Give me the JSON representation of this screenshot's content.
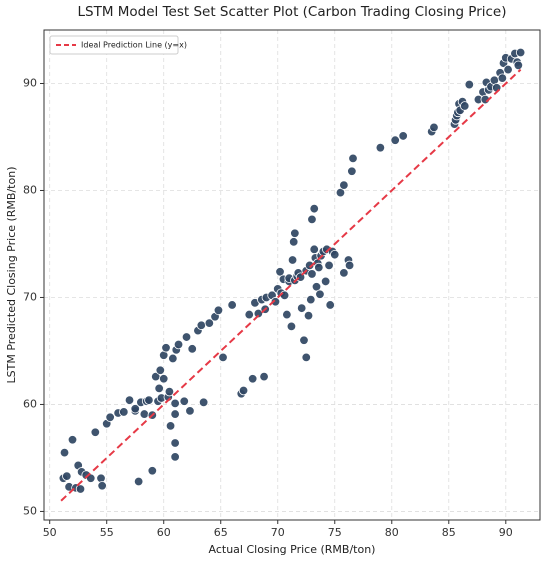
{
  "chart_data": {
    "type": "scatter",
    "title": "LSTM Model Test Set Scatter Plot (Carbon Trading Closing Price)",
    "x_label": "Actual Closing Price (RMB/ton)",
    "y_label": "LSTM Predicted Closing Price (RMB/ton)",
    "xlim": [
      49.5,
      93
    ],
    "ylim": [
      49.2,
      95
    ],
    "xticks": [
      50,
      55,
      60,
      65,
      70,
      75,
      80,
      85,
      90
    ],
    "yticks": [
      50,
      60,
      70,
      80,
      90
    ],
    "grid": true,
    "legend": "upper left",
    "color": "#2f4562",
    "x": [
      51.2,
      51.3,
      51.5,
      51.7,
      52,
      52.3,
      52.5,
      52.7,
      52.8,
      53.2,
      53.6,
      54,
      54.5,
      54.6,
      55,
      55.3,
      56,
      56.5,
      57,
      57.5,
      57.8,
      57.5,
      58,
      58.3,
      58.5,
      58.7,
      59,
      59,
      59.3,
      59.5,
      59.6,
      59.7,
      59.8,
      60,
      60,
      60.2,
      60.4,
      60.5,
      60.6,
      60.8,
      61,
      61,
      61,
      61,
      61.1,
      61.3,
      61.8,
      62,
      62.3,
      62.5,
      63,
      63.3,
      63.5,
      64,
      64.5,
      64.8,
      65.2,
      66,
      66.8,
      67,
      67.5,
      67.8,
      68,
      68.3,
      68.6,
      68.8,
      68.9,
      69,
      69.5,
      69.8,
      70,
      70.2,
      70.3,
      70.5,
      70.6,
      70.8,
      71,
      71,
      71.2,
      71.3,
      71.4,
      71.5,
      71.5,
      71.7,
      71.8,
      72,
      72.1,
      72.3,
      72.5,
      72.5,
      72.7,
      72.8,
      72.9,
      73,
      73,
      73.2,
      73.2,
      73.3,
      73.4,
      73.5,
      73.6,
      73.7,
      73.8,
      74,
      74.2,
      74.3,
      74.5,
      74.6,
      74.8,
      75,
      75.8,
      75.5,
      75.8,
      76.2,
      76.3,
      76.5,
      76.6,
      79,
      80.3,
      81,
      83.5,
      83.7,
      85.5,
      85.6,
      85.7,
      85.8,
      85.9,
      86,
      86.2,
      86.4,
      86.8,
      87.6,
      88,
      88.2,
      88.3,
      88.5,
      88.7,
      89,
      89.2,
      89.5,
      89.7,
      89.8,
      90,
      90.2,
      90.5,
      90.8,
      91,
      91.3,
      91.1
    ],
    "values": [
      53.1,
      55.5,
      53.3,
      52.3,
      56.7,
      52.2,
      54.3,
      52.1,
      53.7,
      53.4,
      53.1,
      57.4,
      53.1,
      52.4,
      58.2,
      58.8,
      59.2,
      59.3,
      60.4,
      59.4,
      52.8,
      59.6,
      60.2,
      59.1,
      60.3,
      60.4,
      53.8,
      59,
      62.6,
      60.3,
      61.5,
      63.2,
      60.6,
      62.4,
      64.6,
      65.3,
      60.7,
      61.2,
      58,
      64.3,
      55.1,
      56.4,
      59.1,
      60.1,
      65.1,
      65.6,
      60.3,
      66.3,
      59.4,
      65.2,
      66.9,
      67.4,
      60.2,
      67.6,
      68.2,
      68.8,
      64.4,
      69.3,
      61,
      61.3,
      68.4,
      62.4,
      69.5,
      68.5,
      69.8,
      62.6,
      68.9,
      70,
      70.2,
      69.6,
      70.8,
      72.4,
      70.4,
      71.7,
      70.2,
      68.4,
      71.5,
      71.8,
      67.3,
      73.5,
      75.2,
      71.6,
      76,
      72,
      72.3,
      71.9,
      69,
      66,
      72.5,
      64.4,
      68.3,
      73,
      69.8,
      72.2,
      77.3,
      78.3,
      74.5,
      73.7,
      71,
      73.2,
      72.8,
      70.3,
      73.9,
      74.3,
      71.5,
      74.5,
      73,
      69.3,
      74.3,
      74,
      72.3,
      79.8,
      80.5,
      73.5,
      73,
      81.8,
      83,
      84,
      84.7,
      85.1,
      85.5,
      85.9,
      86.2,
      86.6,
      87,
      87.3,
      88.1,
      87.5,
      88.3,
      87.9,
      89.9,
      88.5,
      89.2,
      88.5,
      90.1,
      89.4,
      89.7,
      90.3,
      89.6,
      91,
      90.5,
      91.9,
      92.4,
      91.3,
      92.3,
      92.8,
      92,
      92.9,
      91.7
    ],
    "reference_line": {
      "name": "Ideal Prediction Line (y=x)",
      "color": "#e63946",
      "x": [
        51,
        91.3
      ],
      "values": [
        51,
        91.3
      ]
    }
  }
}
